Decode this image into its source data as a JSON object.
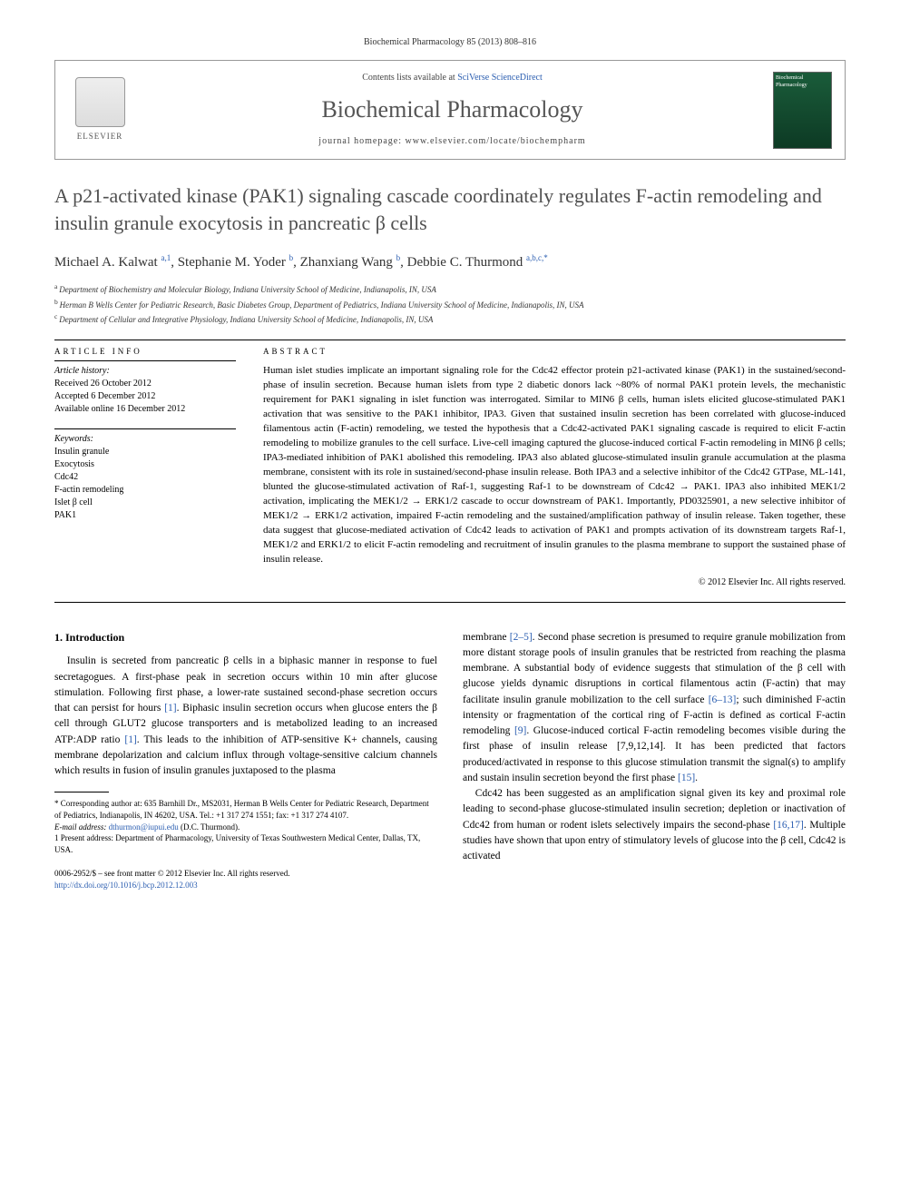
{
  "journal_header": "Biochemical Pharmacology 85 (2013) 808–816",
  "masthead": {
    "contents_prefix": "Contents lists available at ",
    "contents_link": "SciVerse ScienceDirect",
    "journal_name": "Biochemical Pharmacology",
    "homepage_prefix": "journal homepage: ",
    "homepage_url": "www.elsevier.com/locate/biochempharm",
    "publisher": "ELSEVIER",
    "cover_label": "Biochemical Pharmacology"
  },
  "title": "A p21-activated kinase (PAK1) signaling cascade coordinately regulates F-actin remodeling and insulin granule exocytosis in pancreatic β cells",
  "authors_html": "Michael A. Kalwat|a,1|, Stephanie M. Yoder|b|, Zhanxiang Wang|b|, Debbie C. Thurmond|a,b,c,*|",
  "authors": [
    {
      "name": "Michael A. Kalwat",
      "sup": "a,1"
    },
    {
      "name": "Stephanie M. Yoder",
      "sup": "b"
    },
    {
      "name": "Zhanxiang Wang",
      "sup": "b"
    },
    {
      "name": "Debbie C. Thurmond",
      "sup": "a,b,c,*"
    }
  ],
  "affiliations": [
    {
      "sup": "a",
      "text": "Department of Biochemistry and Molecular Biology, Indiana University School of Medicine, Indianapolis, IN, USA"
    },
    {
      "sup": "b",
      "text": "Herman B Wells Center for Pediatric Research, Basic Diabetes Group, Department of Pediatrics, Indiana University School of Medicine, Indianapolis, IN, USA"
    },
    {
      "sup": "c",
      "text": "Department of Cellular and Integrative Physiology, Indiana University School of Medicine, Indianapolis, IN, USA"
    }
  ],
  "article_info": {
    "heading": "ARTICLE INFO",
    "history_label": "Article history:",
    "received": "Received 26 October 2012",
    "accepted": "Accepted 6 December 2012",
    "online": "Available online 16 December 2012",
    "keywords_label": "Keywords:",
    "keywords": [
      "Insulin granule",
      "Exocytosis",
      "Cdc42",
      "F-actin remodeling",
      "Islet β cell",
      "PAK1"
    ]
  },
  "abstract": {
    "heading": "ABSTRACT",
    "text": "Human islet studies implicate an important signaling role for the Cdc42 effector protein p21-activated kinase (PAK1) in the sustained/second-phase of insulin secretion. Because human islets from type 2 diabetic donors lack ~80% of normal PAK1 protein levels, the mechanistic requirement for PAK1 signaling in islet function was interrogated. Similar to MIN6 β cells, human islets elicited glucose-stimulated PAK1 activation that was sensitive to the PAK1 inhibitor, IPA3. Given that sustained insulin secretion has been correlated with glucose-induced filamentous actin (F-actin) remodeling, we tested the hypothesis that a Cdc42-activated PAK1 signaling cascade is required to elicit F-actin remodeling to mobilize granules to the cell surface. Live-cell imaging captured the glucose-induced cortical F-actin remodeling in MIN6 β cells; IPA3-mediated inhibition of PAK1 abolished this remodeling. IPA3 also ablated glucose-stimulated insulin granule accumulation at the plasma membrane, consistent with its role in sustained/second-phase insulin release. Both IPA3 and a selective inhibitor of the Cdc42 GTPase, ML-141, blunted the glucose-stimulated activation of Raf-1, suggesting Raf-1 to be downstream of Cdc42 → PAK1. IPA3 also inhibited MEK1/2 activation, implicating the MEK1/2 → ERK1/2 cascade to occur downstream of PAK1. Importantly, PD0325901, a new selective inhibitor of MEK1/2 → ERK1/2 activation, impaired F-actin remodeling and the sustained/amplification pathway of insulin release. Taken together, these data suggest that glucose-mediated activation of Cdc42 leads to activation of PAK1 and prompts activation of its downstream targets Raf-1, MEK1/2 and ERK1/2 to elicit F-actin remodeling and recruitment of insulin granules to the plasma membrane to support the sustained phase of insulin release.",
    "copyright": "© 2012 Elsevier Inc. All rights reserved."
  },
  "body": {
    "section_heading": "1. Introduction",
    "col1_p1": "Insulin is secreted from pancreatic β cells in a biphasic manner in response to fuel secretagogues. A first-phase peak in secretion occurs within 10 min after glucose stimulation. Following first phase, a lower-rate sustained second-phase secretion occurs that can persist for hours [1]. Biphasic insulin secretion occurs when glucose enters the β cell through GLUT2 glucose transporters and is metabolized leading to an increased ATP:ADP ratio [1]. This leads to the inhibition of ATP-sensitive K+ channels, causing membrane depolarization and calcium influx through voltage-sensitive calcium channels which results in fusion of insulin granules juxtaposed to the plasma",
    "col2_p1": "membrane [2–5]. Second phase secretion is presumed to require granule mobilization from more distant storage pools of insulin granules that be restricted from reaching the plasma membrane. A substantial body of evidence suggests that stimulation of the β cell with glucose yields dynamic disruptions in cortical filamentous actin (F-actin) that may facilitate insulin granule mobilization to the cell surface [6–13]; such diminished F-actin intensity or fragmentation of the cortical ring of F-actin is defined as cortical F-actin remodeling [9]. Glucose-induced cortical F-actin remodeling becomes visible during the first phase of insulin release [7,9,12,14]. It has been predicted that factors produced/activated in response to this glucose stimulation transmit the signal(s) to amplify and sustain insulin secretion beyond the first phase [15].",
    "col2_p2": "Cdc42 has been suggested as an amplification signal given its key and proximal role leading to second-phase glucose-stimulated insulin secretion; depletion or inactivation of Cdc42 from human or rodent islets selectively impairs the second-phase [16,17]. Multiple studies have shown that upon entry of stimulatory levels of glucose into the β cell, Cdc42 is activated"
  },
  "footnotes": {
    "corr_label": "* Corresponding author at: 635 Barnhill Dr., MS2031, Herman B Wells Center for Pediatric Research, Department of Pediatrics, Indianapolis, IN 46202, USA. Tel.: +1 317 274 1551; fax: +1 317 274 4107.",
    "email_label": "E-mail address: ",
    "email": "dthurmon@iupui.edu",
    "email_suffix": " (D.C. Thurmond).",
    "present_label": "1 Present address: Department of Pharmacology, University of Texas Southwestern Medical Center, Dallas, TX, USA."
  },
  "bottom": {
    "issn_line": "0006-2952/$ – see front matter © 2012 Elsevier Inc. All rights reserved.",
    "doi": "http://dx.doi.org/10.1016/j.bcp.2012.12.003"
  },
  "colors": {
    "link": "#2a5db0",
    "title_gray": "#505050",
    "cover_green": "#1a5c3a"
  }
}
